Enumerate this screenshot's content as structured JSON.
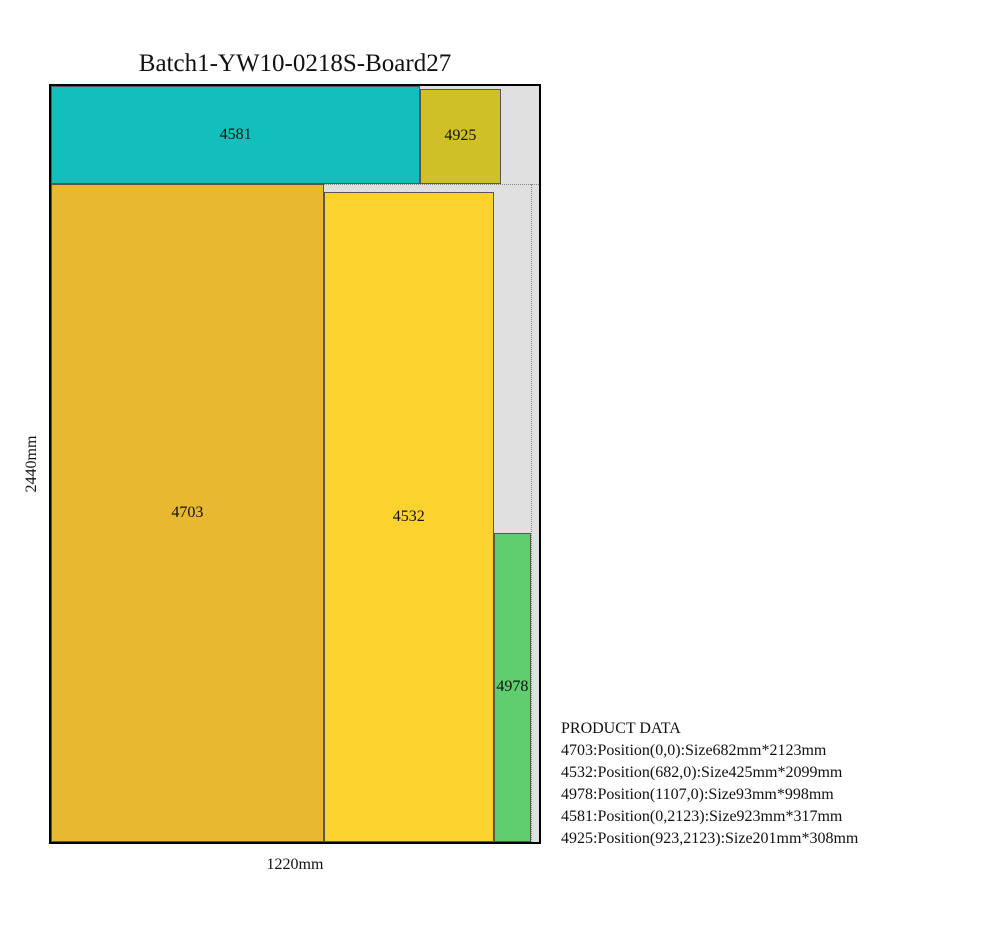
{
  "title": "Batch1-YW10-0218S-Board27",
  "board": {
    "width_mm": 1220,
    "height_mm": 2440,
    "background": "#e0e0e0"
  },
  "axis": {
    "x_label": "1220mm",
    "y_label": "2440mm"
  },
  "pieces": [
    {
      "id": "4703",
      "x": 0,
      "y": 0,
      "w": 682,
      "h": 2123,
      "color": "#e8b930"
    },
    {
      "id": "4532",
      "x": 682,
      "y": 0,
      "w": 425,
      "h": 2099,
      "color": "#fcd22f"
    },
    {
      "id": "4978",
      "x": 1107,
      "y": 0,
      "w": 93,
      "h": 998,
      "color": "#60cd6e"
    },
    {
      "id": "4581",
      "x": 0,
      "y": 2123,
      "w": 923,
      "h": 317,
      "color": "#12bfba"
    },
    {
      "id": "4925",
      "x": 923,
      "y": 2123,
      "w": 201,
      "h": 308,
      "color": "#d0c028"
    }
  ],
  "legend": {
    "heading": "PRODUCT DATA",
    "lines": [
      "4703:Position(0,0):Size682mm*2123mm",
      "4532:Position(682,0):Size425mm*2099mm",
      "4978:Position(1107,0):Size93mm*998mm",
      "4581:Position(0,2123):Size923mm*317mm",
      "4925:Position(923,2123):Size201mm*308mm"
    ]
  }
}
